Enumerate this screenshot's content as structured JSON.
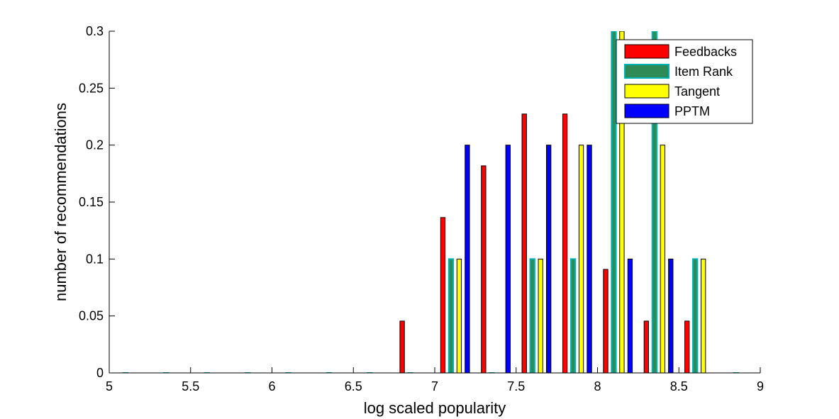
{
  "chart_data": {
    "type": "bar",
    "xlabel": "log scaled popularity",
    "ylabel": "number of recommendations",
    "xlim": [
      5,
      9
    ],
    "ylim": [
      0,
      0.3
    ],
    "xticks": [
      "5",
      "5.5",
      "6",
      "6.5",
      "7",
      "7.5",
      "8",
      "8.5",
      "9"
    ],
    "yticks": [
      "0",
      "0.05",
      "0.1",
      "0.15",
      "0.2",
      "0.25",
      "0.3"
    ],
    "x": [
      5.125,
      5.375,
      5.625,
      5.875,
      6.125,
      6.375,
      6.625,
      6.875,
      7.125,
      7.375,
      7.625,
      7.875,
      8.125,
      8.375,
      8.625,
      8.875
    ],
    "legend_position": "top-right",
    "series": [
      {
        "name": "Feedbacks",
        "color": "#ff0000",
        "values": [
          0,
          0,
          0,
          0,
          0,
          0,
          0,
          0.0455,
          0.1364,
          0.1818,
          0.2273,
          0.2273,
          0.0909,
          0.0455,
          0.0455,
          0
        ]
      },
      {
        "name": "Item Rank",
        "color": "#2e8b57",
        "edge_color": "#00b3b3",
        "values": [
          0,
          0,
          0,
          0,
          0,
          0,
          0,
          0,
          0.1,
          0,
          0.1,
          0.1,
          0.3,
          0.3,
          0.1,
          0
        ]
      },
      {
        "name": "Tangent",
        "color": "#ffff00",
        "values": [
          0,
          0,
          0,
          0,
          0,
          0,
          0,
          0,
          0.1,
          0,
          0.1,
          0.2,
          0.3,
          0.2,
          0.1,
          0
        ]
      },
      {
        "name": "PPTM",
        "color": "#0000ff",
        "values": [
          0,
          0,
          0,
          0,
          0,
          0,
          0,
          0,
          0.2,
          0.2,
          0.2,
          0.2,
          0.1,
          0.1,
          0,
          0
        ]
      }
    ]
  }
}
